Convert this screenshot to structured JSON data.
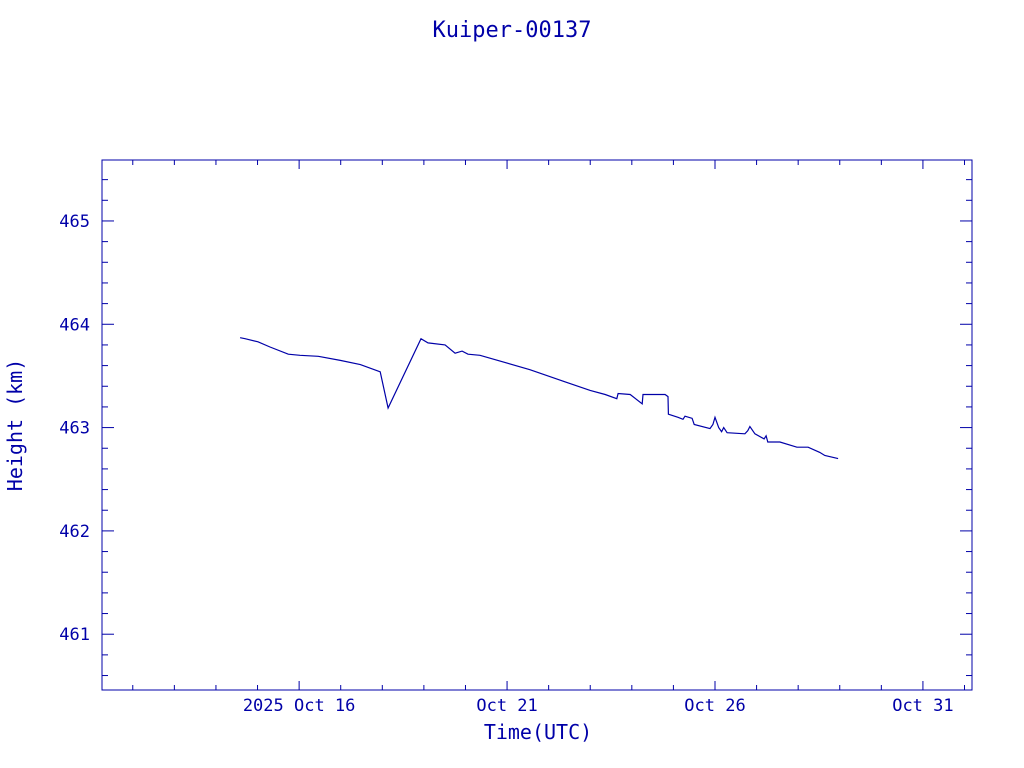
{
  "colors": {
    "ink": "#0000a8",
    "background": "#ffffff"
  },
  "chart_data": {
    "type": "line",
    "title": "Kuiper-00137",
    "xlabel": "Time(UTC)",
    "ylabel": "Height (km)",
    "x_unit": "day of October 2025 (UTC)",
    "xlim": [
      11.26,
      32.18
    ],
    "ylim": [
      460.46,
      465.59
    ],
    "x_major_ticks": [
      16,
      21,
      26,
      31
    ],
    "x_tick_labels": [
      "2025 Oct 16",
      "Oct 21",
      "Oct 26",
      "Oct 31"
    ],
    "x_minor_step": 1,
    "y_major_ticks": [
      461,
      462,
      463,
      464,
      465
    ],
    "y_tick_labels": [
      "461",
      "462",
      "463",
      "464",
      "465"
    ],
    "y_minor_step": 0.2,
    "grid": false,
    "series": [
      {
        "name": "Kuiper-00137",
        "x": [
          14.58,
          14.7,
          15.01,
          15.3,
          15.74,
          16.02,
          16.46,
          16.99,
          17.47,
          17.95,
          18.14,
          18.93,
          19.1,
          19.51,
          19.75,
          19.92,
          20.06,
          20.35,
          21.55,
          22.27,
          23.0,
          23.36,
          23.64,
          23.67,
          23.96,
          24.25,
          24.27,
          24.8,
          24.87,
          24.88,
          25.11,
          25.23,
          25.28,
          25.45,
          25.5,
          25.88,
          25.95,
          26.0,
          26.09,
          26.16,
          26.21,
          26.29,
          26.72,
          26.79,
          26.84,
          26.96,
          27.18,
          27.23,
          27.27,
          27.56,
          27.97,
          28.24,
          28.52,
          28.64,
          28.96
        ],
        "y": [
          463.87,
          463.86,
          463.83,
          463.78,
          463.71,
          463.7,
          463.69,
          463.65,
          463.61,
          463.54,
          463.19,
          463.86,
          463.82,
          463.8,
          463.72,
          463.74,
          463.71,
          463.7,
          463.56,
          463.46,
          463.36,
          463.32,
          463.28,
          463.33,
          463.32,
          463.23,
          463.32,
          463.32,
          463.3,
          463.13,
          463.1,
          463.08,
          463.11,
          463.09,
          463.03,
          462.99,
          463.03,
          463.1,
          463.0,
          462.96,
          463.0,
          462.95,
          462.94,
          462.97,
          463.01,
          462.94,
          462.89,
          462.92,
          462.86,
          462.86,
          462.81,
          462.81,
          462.76,
          462.73,
          462.7
        ]
      }
    ]
  }
}
